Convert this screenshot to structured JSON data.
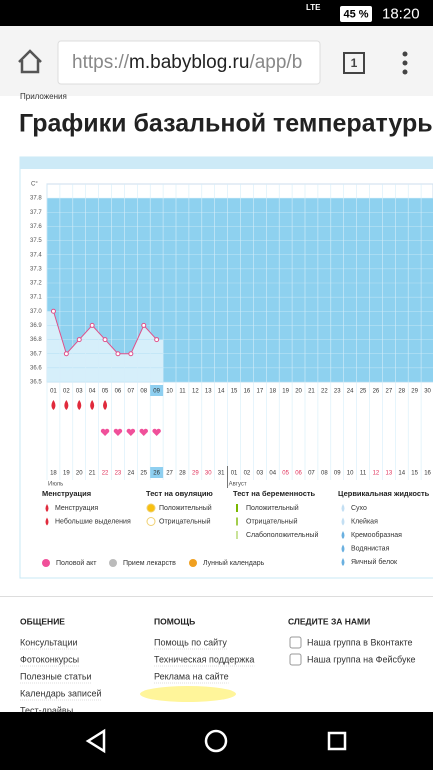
{
  "status_bar": {
    "network": "LTE",
    "battery": "45 %",
    "time": "18:20"
  },
  "browser": {
    "url_scheme": "https://",
    "url_host": "m.babyblog.ru",
    "url_path": "/app/b",
    "tabs": "1"
  },
  "page": {
    "breadcrumb": "Приложения",
    "title": "Графики базальной температуры"
  },
  "chart_data": {
    "type": "line",
    "y_unit": "C°",
    "categories": [
      "01",
      "02",
      "03",
      "04",
      "05",
      "06",
      "07",
      "08",
      "09",
      "10",
      "11",
      "12",
      "13",
      "14",
      "15",
      "16",
      "17",
      "18",
      "19",
      "20",
      "21",
      "22",
      "23",
      "24",
      "25",
      "26",
      "27",
      "28",
      "29",
      "30"
    ],
    "dates": [
      "18",
      "19",
      "20",
      "21",
      "22",
      "23",
      "24",
      "25",
      "26",
      "27",
      "28",
      "29",
      "30",
      "31",
      "01",
      "02",
      "03",
      "04",
      "05",
      "06",
      "07",
      "08",
      "09",
      "10",
      "11",
      "12",
      "13",
      "14",
      "15",
      "16"
    ],
    "months": [
      {
        "index": 0,
        "label": "Июль"
      },
      {
        "index": 14,
        "label": "Август"
      }
    ],
    "weekend": [
      4,
      5,
      11,
      12,
      18,
      19,
      25,
      26
    ],
    "today_index": 8,
    "values": [
      37.0,
      36.7,
      36.8,
      36.9,
      36.8,
      36.7,
      36.7,
      36.9,
      36.8,
      null,
      null,
      null,
      null,
      null,
      null,
      null,
      null,
      null,
      null,
      null,
      null,
      null,
      null,
      null,
      null,
      null,
      null,
      null,
      null,
      null
    ],
    "menstruation_days": [
      0,
      1,
      2,
      3,
      4
    ],
    "intercourse_days": [
      4,
      5,
      6,
      7,
      8
    ],
    "color": "#e0508a",
    "fill_color": "#8ed1ef",
    "grid": true,
    "ylim": [
      36.5,
      37.9
    ],
    "yticks": [
      36.5,
      36.6,
      36.7,
      36.8,
      36.9,
      {
        "value": 37,
        "label": "37.0"
      },
      37.1,
      37.2,
      37.3,
      37.4,
      37.5,
      37.6,
      37.7,
      37.8
    ]
  },
  "legend": {
    "groups": [
      {
        "title": "Менструация",
        "items": [
          "Менструация",
          "Небольшие выделения"
        ]
      },
      {
        "title": "Тест на овуляцию",
        "items": [
          "Положительный",
          "Отрицательный"
        ]
      },
      {
        "title": "Тест на беременность",
        "items": [
          "Положительный",
          "Отрицательный",
          "Слабоположительный"
        ]
      },
      {
        "title": "Цервикальная жидкость",
        "items": [
          "Сухо",
          "Клейкая",
          "Кремообразная",
          "Водянистая",
          "Яичный белок"
        ]
      }
    ],
    "bottom": [
      "Половой акт",
      "Прием лекарств",
      "Лунный календарь"
    ]
  },
  "footer": {
    "columns": [
      {
        "title": "ОБЩЕНИЕ",
        "links": [
          "Консультации",
          "Фотоконкурсы",
          "Полезные статьи",
          "Календарь записей",
          "Тест-драйвы"
        ]
      },
      {
        "title": "ПОМОЩЬ",
        "links": [
          "Помощь по сайту",
          "Техническая поддержка",
          "Реклама на сайте"
        ]
      },
      {
        "title": "СЛЕДИТЕ ЗА НАМИ",
        "links": [
          "Наша группа в Вконтакте",
          "Наша группа на Фейсбуке"
        ]
      }
    ]
  }
}
